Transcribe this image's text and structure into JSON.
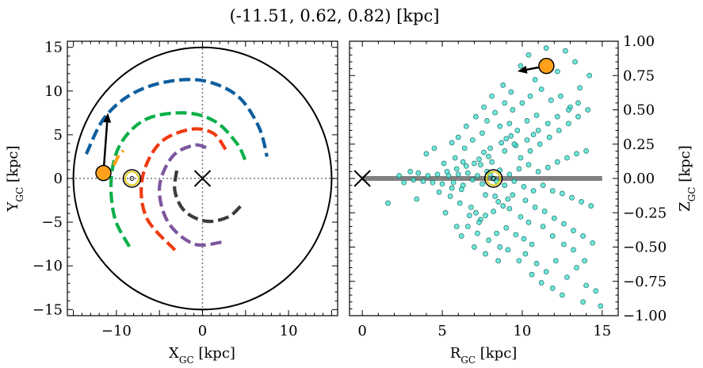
{
  "figure": {
    "title": "(-11.51, 0.62, 0.82) [kpc]"
  },
  "chart_data": [
    {
      "type": "line",
      "panel": "left",
      "xlabel": "X",
      "xlabel_sub": "GC",
      "xlabel_unit": " [kpc]",
      "ylabel": "Y",
      "ylabel_sub": "GC",
      "ylabel_unit": " [kpc]",
      "xlim": [
        -15.7,
        15.7
      ],
      "ylim": [
        -15.7,
        15.7
      ],
      "xticks": [
        -10,
        0,
        10
      ],
      "yticks": [
        -15,
        -10,
        -5,
        0,
        5,
        10,
        15
      ],
      "xtick_labels": [
        "−10",
        "0",
        "10"
      ],
      "ytick_labels": [
        "−15",
        "−10",
        "−5",
        "0",
        "5",
        "10",
        "15"
      ],
      "boundary_circle_radius": 15,
      "crosshair": {
        "x": 0,
        "y": 0
      },
      "galactic_center": {
        "x": 0,
        "y": 0
      },
      "sun": {
        "x": -8.2,
        "y": 0.0
      },
      "object": {
        "x": -11.51,
        "y": 0.62,
        "color": "#FFA11A"
      },
      "velocity_arrow": {
        "from": [
          -11.51,
          0.62
        ],
        "to": [
          -11.0,
          7.5
        ]
      },
      "arms": [
        {
          "color": "#0E5E9E",
          "points": [
            [
              -13.5,
              2.8
            ],
            [
              -11.5,
              6.8
            ],
            [
              -8.5,
              9.5
            ],
            [
              -4.5,
              11.0
            ],
            [
              0.0,
              11.2
            ],
            [
              4.0,
              9.5
            ],
            [
              6.5,
              6.0
            ],
            [
              7.5,
              2.5
            ]
          ]
        },
        {
          "color": "#0CB04A",
          "points": [
            [
              -8.5,
              -7.8
            ],
            [
              -10.2,
              -4.5
            ],
            [
              -10.6,
              0.0
            ],
            [
              -9.5,
              4.0
            ],
            [
              -6.5,
              6.8
            ],
            [
              -2.0,
              7.5
            ],
            [
              1.5,
              6.5
            ],
            [
              4.0,
              4.0
            ],
            [
              5.0,
              2.0
            ]
          ]
        },
        {
          "color": "#F03A12",
          "points": [
            [
              -3.2,
              -8.2
            ],
            [
              -6.5,
              -4.5
            ],
            [
              -7.0,
              0.0
            ],
            [
              -5.0,
              4.0
            ],
            [
              -1.5,
              5.6
            ],
            [
              1.2,
              5.2
            ],
            [
              2.7,
              3.3
            ]
          ]
        },
        {
          "color": "#7D569E",
          "points": [
            [
              2.2,
              -7.3
            ],
            [
              -1.0,
              -7.5
            ],
            [
              -4.0,
              -5.0
            ],
            [
              -5.0,
              -1.0
            ],
            [
              -3.5,
              2.5
            ],
            [
              -1.0,
              3.8
            ],
            [
              0.5,
              3.5
            ]
          ]
        },
        {
          "color": "#FFA11A",
          "points": [
            [
              -10.3,
              1.5
            ],
            [
              -9.8,
              2.5
            ],
            [
              -9.2,
              3.2
            ]
          ]
        },
        {
          "color": "#3C3C3C",
          "points": [
            [
              -3.0,
              0.9
            ],
            [
              -3.2,
              -1.5
            ],
            [
              -2.0,
              -3.8
            ],
            [
              0.5,
              -4.9
            ],
            [
              3.0,
              -4.4
            ],
            [
              4.5,
              -3.1
            ]
          ]
        }
      ]
    },
    {
      "type": "scatter",
      "panel": "right",
      "xlabel": "R",
      "xlabel_sub": "GC",
      "xlabel_unit": " [kpc]",
      "ylabel": "Z",
      "ylabel_sub": "GC",
      "ylabel_unit": " [kpc]",
      "xlim": [
        -0.8,
        16.0
      ],
      "ylim": [
        -1.0,
        1.0
      ],
      "xticks": [
        0,
        5,
        10,
        15
      ],
      "yticks": [
        -1.0,
        -0.75,
        -0.5,
        -0.25,
        0.0,
        0.25,
        0.5,
        0.75,
        1.0
      ],
      "xtick_labels": [
        "0",
        "5",
        "10",
        "15"
      ],
      "ytick_labels": [
        "−1.00",
        "−0.75",
        "−0.50",
        "−0.25",
        "0.00",
        "0.25",
        "0.50",
        "0.75",
        "1.00"
      ],
      "galactic_plane": {
        "x_from": 0,
        "x_to": 15,
        "z": 0
      },
      "galactic_center": {
        "x": 0,
        "y": 0
      },
      "sun": {
        "x": 8.2,
        "y": 0.0
      },
      "object": {
        "x": 11.51,
        "y": 0.82,
        "color": "#FFA11A"
      },
      "velocity_arrow": {
        "from": [
          11.51,
          0.82
        ],
        "to": [
          9.7,
          0.78
        ]
      },
      "point_color": "#40E0D0",
      "points": [
        [
          8.2,
          0.0
        ],
        [
          8.0,
          0.03
        ],
        [
          8.4,
          -0.02
        ],
        [
          7.8,
          0.05
        ],
        [
          8.6,
          0.06
        ],
        [
          7.5,
          -0.04
        ],
        [
          8.9,
          -0.05
        ],
        [
          7.2,
          0.02
        ],
        [
          9.2,
          0.03
        ],
        [
          6.9,
          -0.01
        ],
        [
          9.5,
          -0.02
        ],
        [
          6.6,
          0.04
        ],
        [
          9.8,
          0.07
        ],
        [
          6.3,
          -0.05
        ],
        [
          10.1,
          -0.06
        ],
        [
          6.0,
          0.03
        ],
        [
          10.4,
          0.1
        ],
        [
          5.7,
          -0.03
        ],
        [
          10.7,
          -0.09
        ],
        [
          5.4,
          0.02
        ],
        [
          8.1,
          0.12
        ],
        [
          8.3,
          -0.13
        ],
        [
          7.9,
          0.16
        ],
        [
          8.5,
          -0.17
        ],
        [
          7.6,
          0.19
        ],
        [
          8.8,
          -0.2
        ],
        [
          7.3,
          0.14
        ],
        [
          9.1,
          -0.15
        ],
        [
          7.0,
          0.11
        ],
        [
          9.4,
          -0.12
        ],
        [
          8.0,
          0.22
        ],
        [
          8.2,
          -0.24
        ],
        [
          8.7,
          0.26
        ],
        [
          7.7,
          -0.27
        ],
        [
          9.0,
          0.29
        ],
        [
          7.4,
          -0.3
        ],
        [
          9.3,
          0.31
        ],
        [
          7.1,
          -0.25
        ],
        [
          9.6,
          0.24
        ],
        [
          6.8,
          -0.21
        ],
        [
          6.5,
          0.09
        ],
        [
          6.2,
          -0.08
        ],
        [
          5.9,
          0.07
        ],
        [
          5.6,
          -0.07
        ],
        [
          5.3,
          0.05
        ],
        [
          5.0,
          -0.04
        ],
        [
          4.7,
          0.03
        ],
        [
          4.4,
          -0.03
        ],
        [
          4.1,
          0.02
        ],
        [
          3.8,
          -0.02
        ],
        [
          3.5,
          0.04
        ],
        [
          3.2,
          -0.01
        ],
        [
          9.9,
          0.15
        ],
        [
          10.2,
          -0.16
        ],
        [
          10.5,
          0.2
        ],
        [
          10.8,
          -0.21
        ],
        [
          11.1,
          0.25
        ],
        [
          11.4,
          -0.24
        ],
        [
          11.7,
          0.3
        ],
        [
          12.0,
          -0.29
        ],
        [
          12.3,
          0.35
        ],
        [
          12.6,
          -0.33
        ],
        [
          12.9,
          0.4
        ],
        [
          13.2,
          -0.38
        ],
        [
          13.5,
          0.45
        ],
        [
          13.8,
          -0.42
        ],
        [
          14.1,
          0.5
        ],
        [
          14.4,
          -0.47
        ],
        [
          11.0,
          0.05
        ],
        [
          11.3,
          -0.05
        ],
        [
          11.6,
          0.08
        ],
        [
          11.9,
          -0.09
        ],
        [
          12.2,
          0.12
        ],
        [
          12.5,
          -0.11
        ],
        [
          12.8,
          0.15
        ],
        [
          13.1,
          -0.14
        ],
        [
          13.4,
          0.18
        ],
        [
          13.7,
          -0.17
        ],
        [
          14.0,
          0.2
        ],
        [
          14.3,
          -0.2
        ],
        [
          9.7,
          0.35
        ],
        [
          9.2,
          0.4
        ],
        [
          8.6,
          0.38
        ],
        [
          10.3,
          0.42
        ],
        [
          10.9,
          0.46
        ],
        [
          9.0,
          -0.36
        ],
        [
          9.6,
          -0.41
        ],
        [
          10.1,
          -0.44
        ],
        [
          10.6,
          -0.48
        ],
        [
          8.4,
          -0.4
        ],
        [
          7.5,
          0.33
        ],
        [
          6.9,
          0.28
        ],
        [
          6.4,
          0.22
        ],
        [
          7.3,
          -0.32
        ],
        [
          6.7,
          -0.27
        ],
        [
          6.1,
          -0.18
        ],
        [
          5.8,
          0.15
        ],
        [
          5.5,
          -0.13
        ],
        [
          5.1,
          0.11
        ],
        [
          4.8,
          -0.1
        ],
        [
          10.0,
          0.55
        ],
        [
          10.5,
          0.6
        ],
        [
          11.2,
          0.65
        ],
        [
          11.8,
          0.57
        ],
        [
          12.4,
          0.6
        ],
        [
          13.0,
          0.52
        ],
        [
          9.4,
          0.5
        ],
        [
          10.8,
          0.72
        ],
        [
          9.9,
          0.82
        ],
        [
          10.4,
          0.9
        ],
        [
          11.5,
          0.95
        ],
        [
          12.2,
          0.78
        ],
        [
          13.6,
          0.66
        ],
        [
          14.2,
          0.75
        ],
        [
          13.3,
          0.85
        ],
        [
          12.7,
          0.93
        ],
        [
          9.3,
          0.63
        ],
        [
          8.9,
          0.55
        ],
        [
          8.3,
          0.48
        ],
        [
          7.8,
          0.42
        ],
        [
          10.2,
          -0.55
        ],
        [
          10.9,
          -0.62
        ],
        [
          11.5,
          -0.68
        ],
        [
          12.1,
          -0.6
        ],
        [
          12.8,
          -0.72
        ],
        [
          13.4,
          -0.65
        ],
        [
          14.0,
          -0.78
        ],
        [
          14.6,
          -0.82
        ],
        [
          13.8,
          -0.9
        ],
        [
          14.9,
          -0.93
        ],
        [
          12.5,
          -0.85
        ],
        [
          11.9,
          -0.8
        ],
        [
          11.2,
          -0.76
        ],
        [
          10.6,
          -0.7
        ],
        [
          9.8,
          -0.6
        ],
        [
          9.1,
          -0.52
        ],
        [
          8.6,
          -0.5
        ],
        [
          7.9,
          -0.45
        ],
        [
          7.2,
          -0.4
        ],
        [
          6.6,
          -0.35
        ],
        [
          3.0,
          0.05
        ],
        [
          2.6,
          -0.03
        ],
        [
          2.3,
          0.02
        ],
        [
          1.6,
          -0.18
        ],
        [
          4.0,
          0.18
        ],
        [
          3.4,
          -0.15
        ],
        [
          4.5,
          0.22
        ],
        [
          5.2,
          -0.25
        ],
        [
          6.0,
          0.3
        ],
        [
          5.6,
          0.26
        ],
        [
          8.1,
          0.6
        ],
        [
          7.6,
          0.52
        ],
        [
          8.8,
          0.68
        ],
        [
          7.1,
          0.45
        ],
        [
          6.5,
          0.38
        ],
        [
          8.5,
          -0.6
        ],
        [
          7.7,
          -0.55
        ],
        [
          7.0,
          -0.5
        ],
        [
          6.2,
          -0.42
        ],
        [
          5.9,
          -0.35
        ],
        [
          11.0,
          0.35
        ],
        [
          11.6,
          0.4
        ],
        [
          12.2,
          0.45
        ],
        [
          12.9,
          0.5
        ],
        [
          13.5,
          0.55
        ],
        [
          11.3,
          -0.35
        ],
        [
          11.9,
          -0.42
        ],
        [
          12.6,
          -0.48
        ],
        [
          13.2,
          -0.52
        ],
        [
          13.9,
          -0.6
        ],
        [
          10.3,
          0.28
        ],
        [
          10.7,
          0.32
        ],
        [
          9.5,
          0.25
        ],
        [
          9.9,
          -0.28
        ],
        [
          10.4,
          -0.32
        ],
        [
          8.9,
          0.2
        ],
        [
          9.2,
          -0.22
        ],
        [
          7.4,
          0.1
        ],
        [
          7.7,
          -0.12
        ],
        [
          6.3,
          0.12
        ]
      ]
    }
  ]
}
